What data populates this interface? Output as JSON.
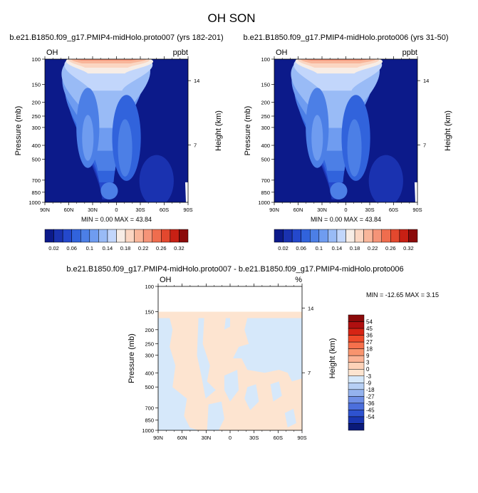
{
  "figure_title": "OH SON",
  "colors": {
    "abs_fill": [
      "#0c1a8a",
      "#1a32b0",
      "#2448cc",
      "#3163dc",
      "#4c7fe6",
      "#6f9cf0",
      "#99bbf6",
      "#c2d6fb",
      "#f7ede6",
      "#fbd6c2",
      "#f9b69a",
      "#f59478",
      "#ef6d4e",
      "#e3482e",
      "#c82014",
      "#8b0a0a"
    ],
    "diff_pos": "#fde4d0",
    "diff_neg": "#d6e8fa",
    "diff_levels": [
      "#8b0a0a",
      "#b01010",
      "#d62414",
      "#ef4a2a",
      "#f6704c",
      "#f8946e",
      "#fbb395",
      "#fdd2b8",
      "#fde4d0",
      "#d6e8fa",
      "#b6cff4",
      "#94b2ee",
      "#6f8fe6",
      "#4c6fdc",
      "#2e52d0",
      "#1a36b2",
      "#0a1a7a"
    ]
  },
  "chart_data": [
    {
      "type": "contour",
      "panel": "left",
      "title": "b.e21.B1850.f09_g17.PMIP4-midHolo.proto007 (yrs 182-201)",
      "left_label": "OH",
      "right_label": "ppbt",
      "ylabel": "Pressure (mb)",
      "ylabel_right": "Height (km)",
      "x_ticks": [
        "90N",
        "60N",
        "30N",
        "0",
        "30S",
        "60S",
        "90S"
      ],
      "y_ticks": [
        "100",
        "150",
        "200",
        "250",
        "300",
        "400",
        "500",
        "700",
        "850",
        "1000"
      ],
      "height_ticks": [
        "14",
        "7"
      ],
      "minmax_text": "MIN =   0.00   MAX =  43.84",
      "colorbar_labels": [
        "0.02",
        "0.06",
        "0.1",
        "0.14",
        "0.18",
        "0.22",
        "0.26",
        "0.32"
      ]
    },
    {
      "type": "contour",
      "panel": "right",
      "title": "b.e21.B1850.f09_g17.PMIP4-midHolo.proto006 (yrs 31-50)",
      "left_label": "OH",
      "right_label": "ppbt",
      "ylabel": "Pressure (mb)",
      "ylabel_right": "Height (km)",
      "x_ticks": [
        "90N",
        "60N",
        "30N",
        "0",
        "30S",
        "60S",
        "90S"
      ],
      "y_ticks": [
        "100",
        "150",
        "200",
        "250",
        "300",
        "400",
        "500",
        "700",
        "850",
        "1000"
      ],
      "height_ticks": [
        "14",
        "7"
      ],
      "minmax_text": "MIN =   0.00   MAX =  43.84",
      "colorbar_labels": [
        "0.02",
        "0.06",
        "0.1",
        "0.14",
        "0.18",
        "0.22",
        "0.26",
        "0.32"
      ]
    },
    {
      "type": "contour",
      "panel": "difference",
      "title": "b.e21.B1850.f09_g17.PMIP4-midHolo.proto007 - b.e21.B1850.f09_g17.PMIP4-midHolo.proto006",
      "left_label": "OH",
      "right_label": "%",
      "ylabel": "Pressure (mb)",
      "ylabel_right": "Height (km)",
      "x_ticks": [
        "90N",
        "60N",
        "30N",
        "0",
        "30S",
        "60S",
        "90S"
      ],
      "y_ticks": [
        "100",
        "150",
        "200",
        "250",
        "300",
        "400",
        "500",
        "700",
        "850",
        "1000"
      ],
      "height_ticks": [
        "14",
        "7"
      ],
      "minmax_text": "MIN = -12.65  MAX =   3.15",
      "colorbar_labels": [
        "54",
        "45",
        "36",
        "27",
        "18",
        "9",
        "3",
        "0",
        "-3",
        "-9",
        "-18",
        "-27",
        "-36",
        "-45",
        "-54"
      ]
    }
  ]
}
